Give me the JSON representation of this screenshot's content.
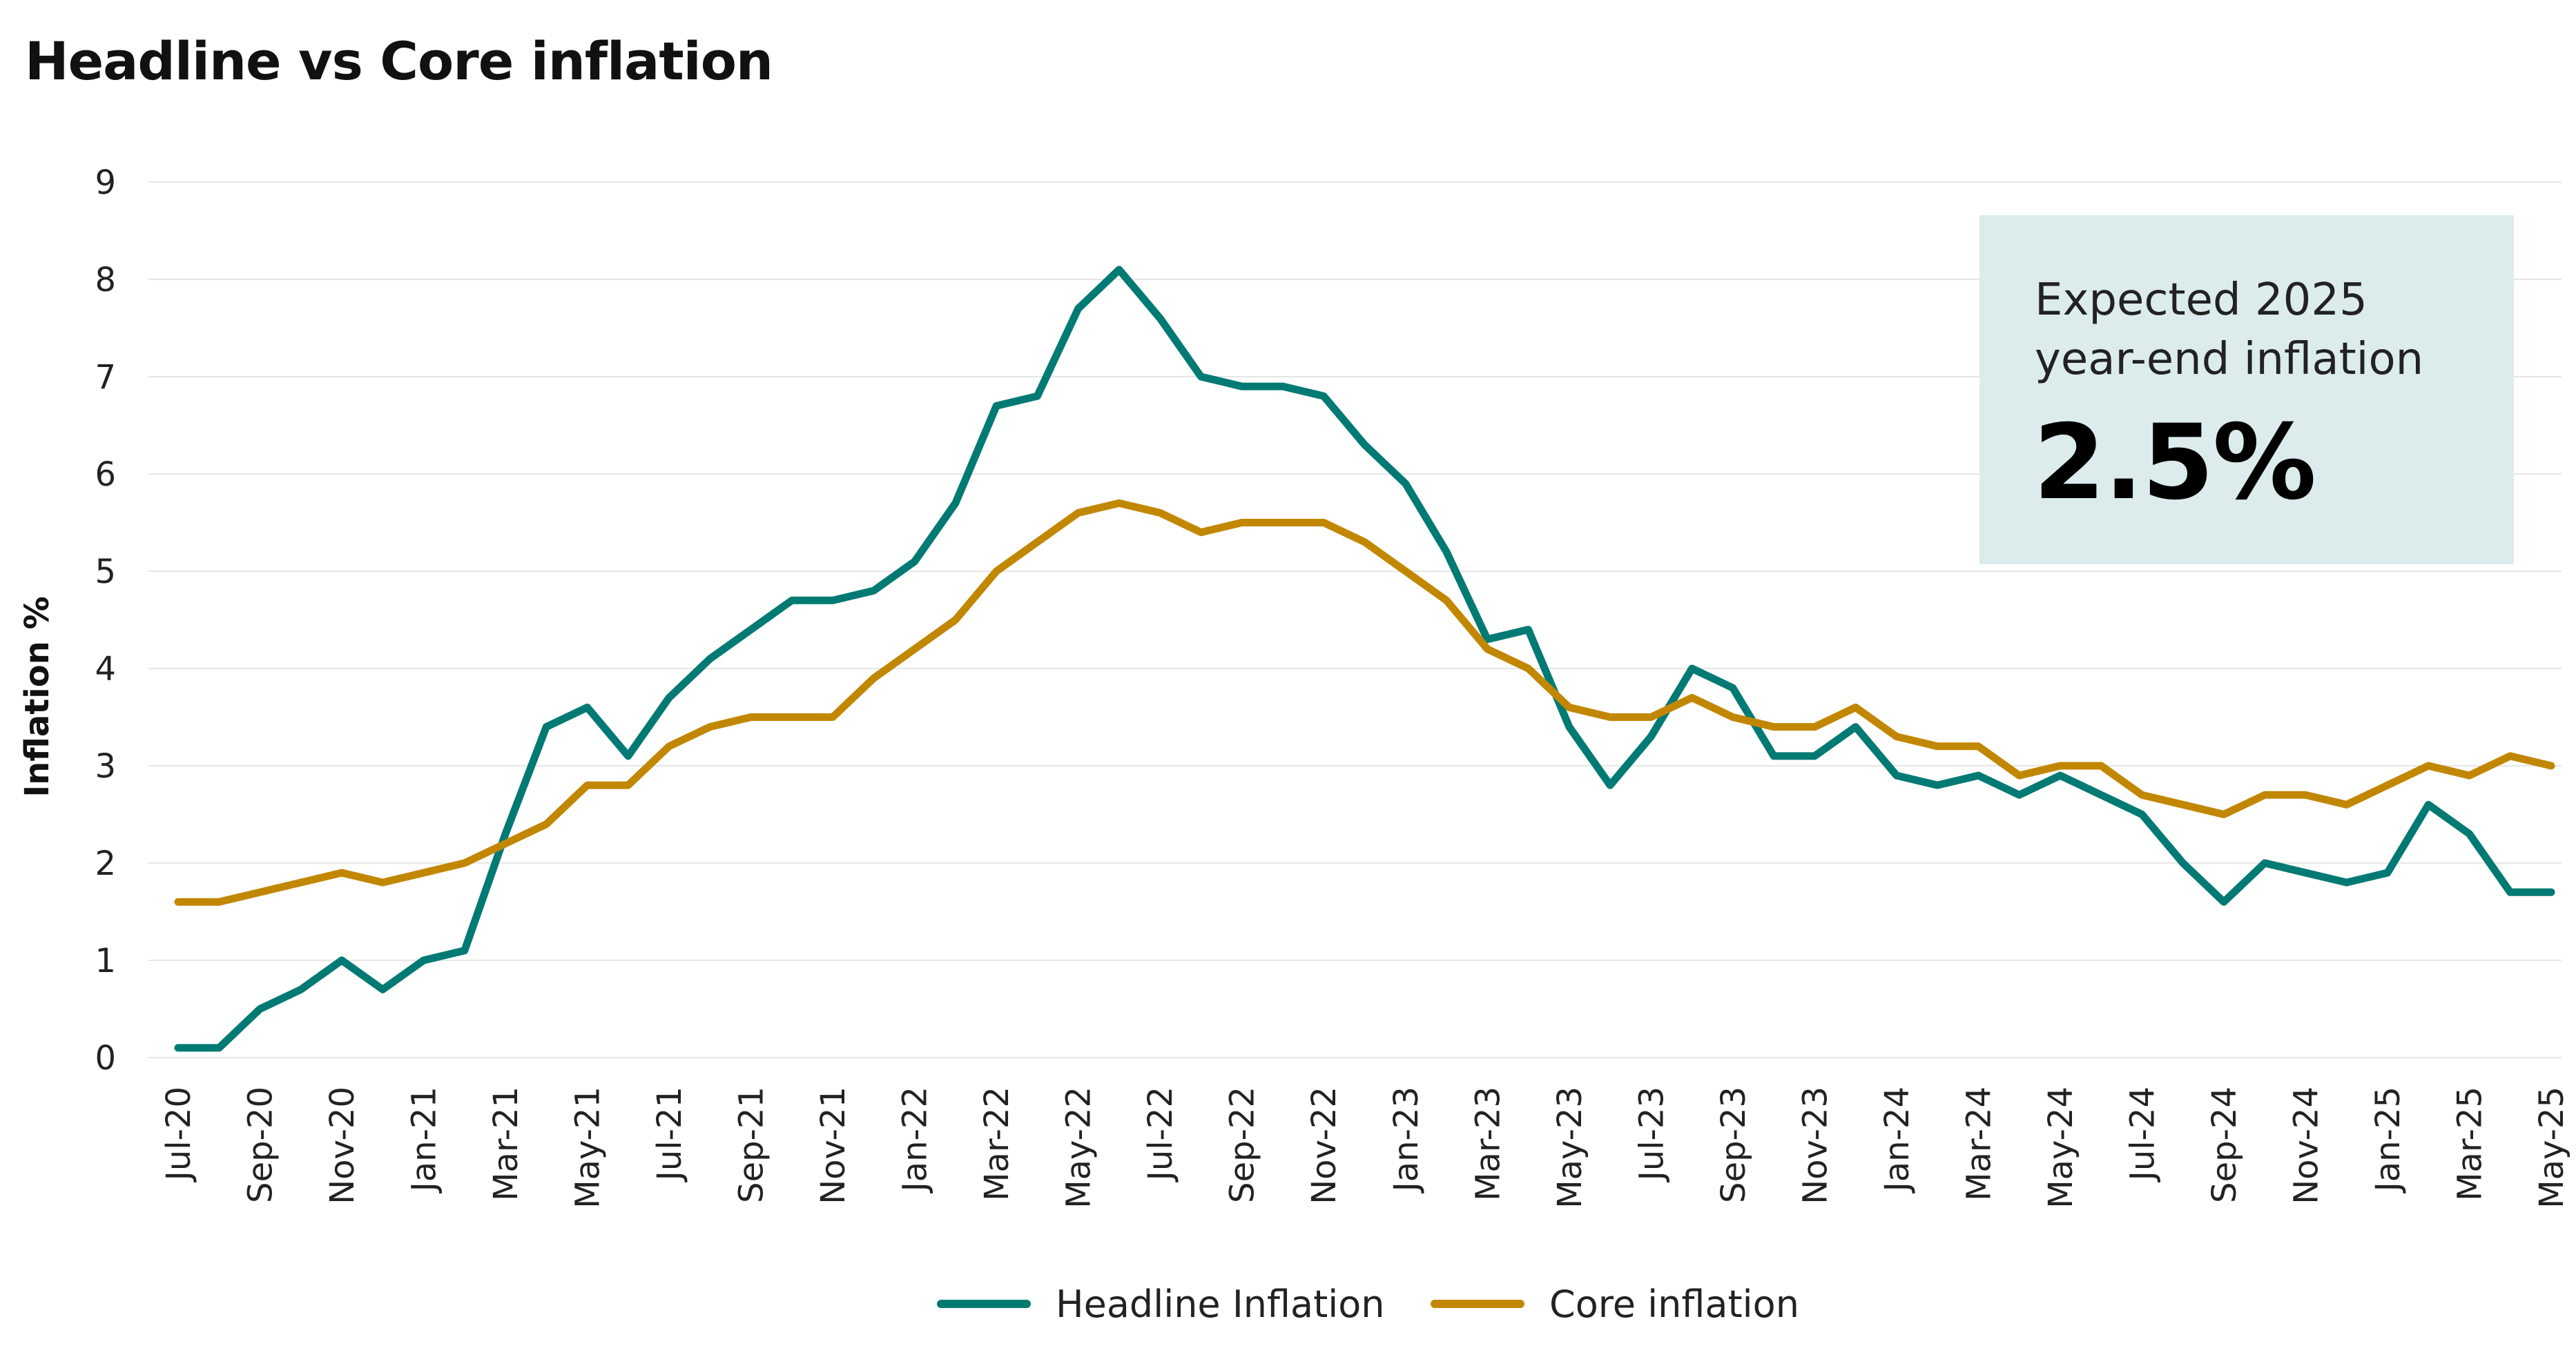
{
  "chart_data": {
    "type": "line",
    "title": "Headline vs Core inflation",
    "ylabel": "Inflation %",
    "xlabel": "",
    "ylim": [
      0,
      9
    ],
    "yticks": [
      0,
      1,
      2,
      3,
      4,
      5,
      6,
      7,
      8,
      9
    ],
    "grid": true,
    "legend_position": "bottom",
    "x": [
      "Jul-20",
      "Aug-20",
      "Sep-20",
      "Oct-20",
      "Nov-20",
      "Dec-20",
      "Jan-21",
      "Feb-21",
      "Mar-21",
      "Apr-21",
      "May-21",
      "Jun-21",
      "Jul-21",
      "Aug-21",
      "Sep-21",
      "Oct-21",
      "Nov-21",
      "Dec-21",
      "Jan-22",
      "Feb-22",
      "Mar-22",
      "Apr-22",
      "May-22",
      "Jun-22",
      "Jul-22",
      "Aug-22",
      "Sep-22",
      "Oct-22",
      "Nov-22",
      "Dec-22",
      "Jan-23",
      "Feb-23",
      "Mar-23",
      "Apr-23",
      "May-23",
      "Jun-23",
      "Jul-23",
      "Aug-23",
      "Sep-23",
      "Oct-23",
      "Nov-23",
      "Dec-23",
      "Jan-24",
      "Feb-24",
      "Mar-24",
      "Apr-24",
      "May-24",
      "Jun-24",
      "Jul-24",
      "Aug-24",
      "Sep-24",
      "Oct-24",
      "Nov-24",
      "Dec-24",
      "Jan-25",
      "Feb-25",
      "Mar-25",
      "Apr-25",
      "May-25"
    ],
    "x_tick_labels": [
      "Jul-20",
      "Sep-20",
      "Nov-20",
      "Jan-21",
      "Mar-21",
      "May-21",
      "Jul-21",
      "Sep-21",
      "Nov-21",
      "Jan-22",
      "Mar-22",
      "May-22",
      "Jul-22",
      "Sep-22",
      "Nov-22",
      "Jan-23",
      "Mar-23",
      "May-23",
      "Jul-23",
      "Sep-23",
      "Nov-23",
      "Jan-24",
      "Mar-24",
      "May-24",
      "Jul-24",
      "Sep-24",
      "Nov-24",
      "Jan-25",
      "Mar-25",
      "May-25"
    ],
    "series": [
      {
        "name": "Headline Inflation",
        "color": "#007a73",
        "values": [
          0.1,
          0.1,
          0.5,
          0.7,
          1.0,
          0.7,
          1.0,
          1.1,
          2.3,
          3.4,
          3.6,
          3.1,
          3.7,
          4.1,
          4.4,
          4.7,
          4.7,
          4.8,
          5.1,
          5.7,
          6.7,
          6.8,
          7.7,
          8.1,
          7.6,
          7.0,
          6.9,
          6.9,
          6.8,
          6.3,
          5.9,
          5.2,
          4.3,
          4.4,
          3.4,
          2.8,
          3.3,
          4.0,
          3.8,
          3.1,
          3.1,
          3.4,
          2.9,
          2.8,
          2.9,
          2.7,
          2.9,
          2.7,
          2.5,
          2.0,
          1.6,
          2.0,
          1.9,
          1.8,
          1.9,
          2.6,
          2.3,
          1.7,
          1.7
        ]
      },
      {
        "name": "Core inflation",
        "color": "#c28700",
        "values": [
          1.6,
          1.6,
          1.7,
          1.8,
          1.9,
          1.8,
          1.9,
          2.0,
          2.2,
          2.4,
          2.8,
          2.8,
          3.2,
          3.4,
          3.5,
          3.5,
          3.5,
          3.9,
          4.2,
          4.5,
          5.0,
          5.3,
          5.6,
          5.7,
          5.6,
          5.4,
          5.5,
          5.5,
          5.5,
          5.3,
          5.0,
          4.7,
          4.2,
          4.0,
          3.6,
          3.5,
          3.5,
          3.7,
          3.5,
          3.4,
          3.4,
          3.6,
          3.3,
          3.2,
          3.2,
          2.9,
          3.0,
          3.0,
          2.7,
          2.6,
          2.5,
          2.7,
          2.7,
          2.6,
          2.8,
          3.0,
          2.9,
          3.1,
          3.0
        ]
      }
    ],
    "annotations": [
      {
        "text": "Expected 2025 year-end inflation",
        "value": "2.5%"
      }
    ]
  }
}
